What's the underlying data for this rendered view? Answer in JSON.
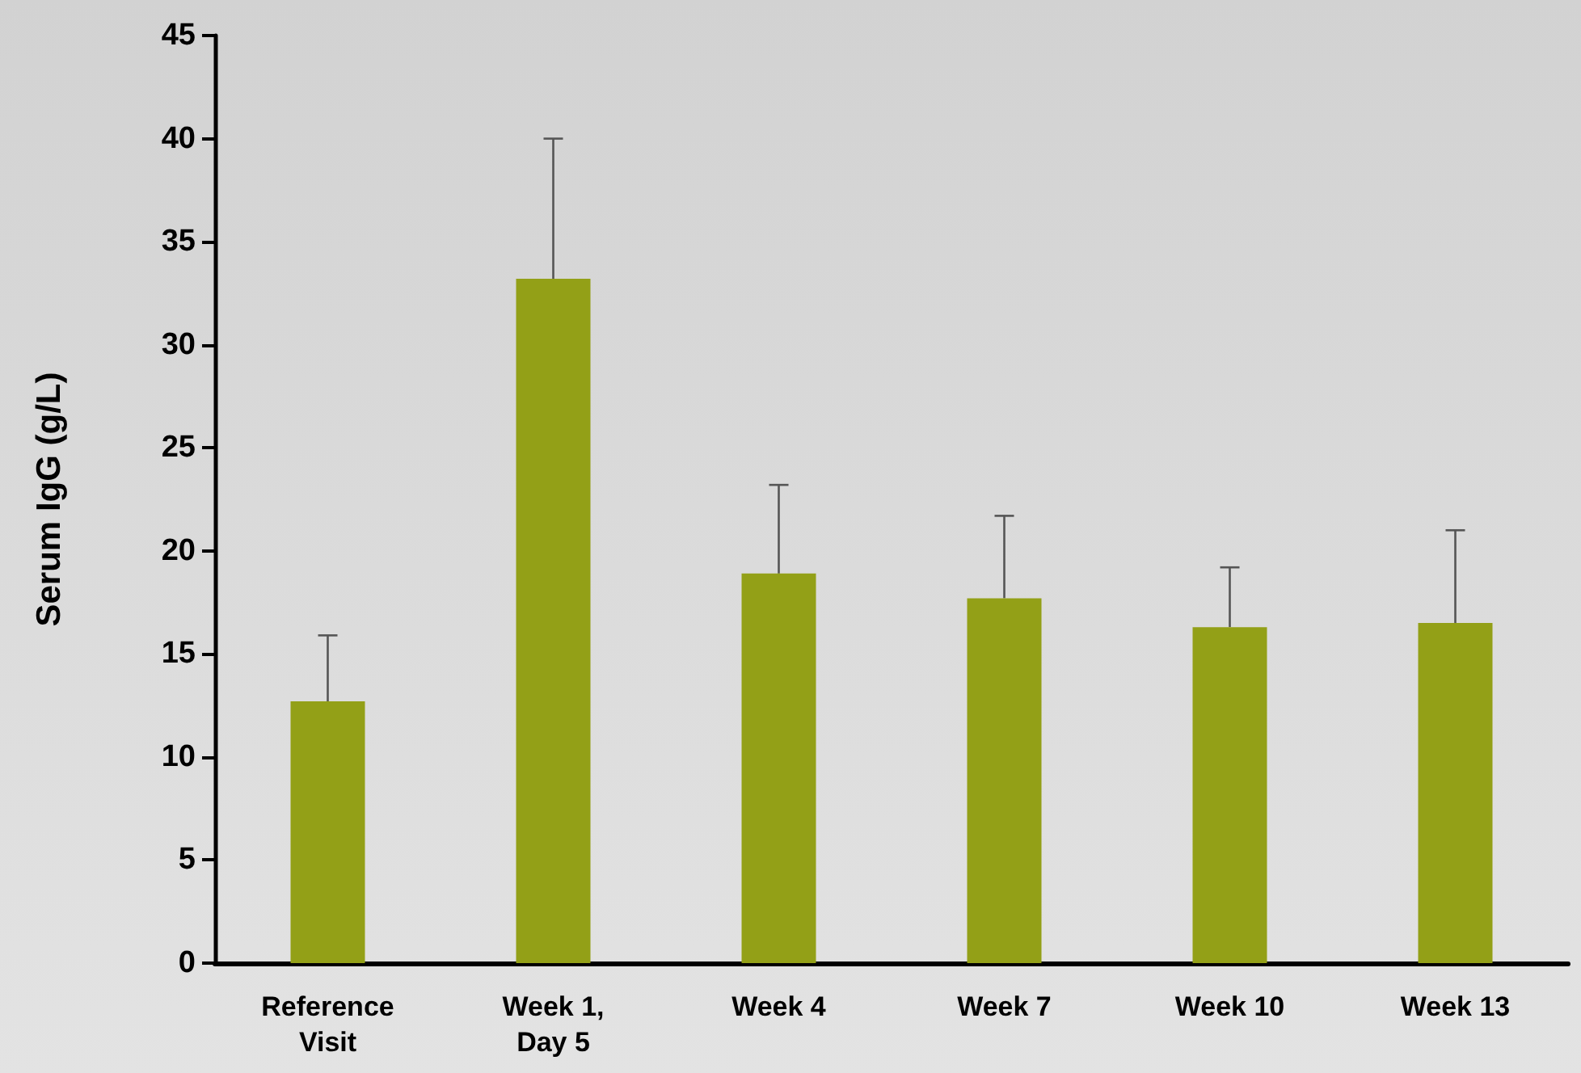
{
  "chart_data": {
    "type": "bar",
    "ylabel": "Serum IgG (g/L)",
    "categories": [
      "Reference\nVisit",
      "Week 1,\nDay 5",
      "Week 4",
      "Week 7",
      "Week 10",
      "Week 13"
    ],
    "values": [
      12.7,
      33.2,
      18.9,
      17.7,
      16.3,
      16.5
    ],
    "errors": [
      [
        12.7,
        15.9
      ],
      [
        33.2,
        40.0
      ],
      [
        18.9,
        23.2
      ],
      [
        17.7,
        21.7
      ],
      [
        16.3,
        19.2
      ],
      [
        16.5,
        21.0
      ]
    ],
    "color": "#93a017",
    "ylim": [
      0,
      45
    ],
    "yticks": [
      0,
      5,
      10,
      15,
      20,
      25,
      30,
      35,
      40,
      45
    ],
    "grid": false
  }
}
